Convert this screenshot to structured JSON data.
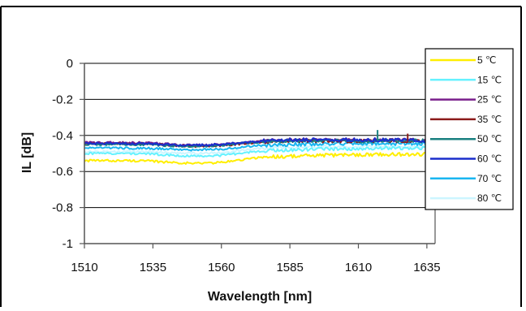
{
  "chart_data": {
    "type": "line",
    "xlabel": "Wavelength [nm]",
    "ylabel": "IL [dB]",
    "xlim": [
      1510,
      1638
    ],
    "ylim": [
      -1,
      0
    ],
    "x_ticks": [
      1510,
      1535,
      1560,
      1585,
      1610,
      1635
    ],
    "y_ticks": [
      0,
      -0.2,
      -0.4,
      -0.6,
      -0.8,
      -1
    ],
    "x_tick_labels": [
      "1510",
      "1535",
      "1560",
      "1585",
      "1610",
      "1635"
    ],
    "y_tick_labels": [
      "0",
      "-0.2",
      "-0.4",
      "-0.6",
      "-0.8",
      "-1"
    ],
    "grid": "horizontal",
    "legend_position": "right",
    "series": [
      {
        "name": "5 ℃",
        "color": "#ffee00",
        "x": [
          1510,
          1530,
          1550,
          1560,
          1575,
          1585,
          1600,
          1615,
          1630,
          1638
        ],
        "values": [
          -0.54,
          -0.54,
          -0.555,
          -0.55,
          -0.52,
          -0.515,
          -0.51,
          -0.505,
          -0.505,
          -0.5
        ]
      },
      {
        "name": "15 ℃",
        "color": "#66f2ff",
        "x": [
          1510,
          1530,
          1550,
          1560,
          1575,
          1585,
          1600,
          1615,
          1630,
          1638
        ],
        "values": [
          -0.5,
          -0.5,
          -0.515,
          -0.51,
          -0.485,
          -0.48,
          -0.475,
          -0.47,
          -0.47,
          -0.465
        ]
      },
      {
        "name": "25 ℃",
        "color": "#7a1f8c",
        "x": [
          1510,
          1530,
          1550,
          1560,
          1575,
          1585,
          1600,
          1615,
          1630,
          1638
        ],
        "values": [
          -0.44,
          -0.44,
          -0.455,
          -0.45,
          -0.43,
          -0.425,
          -0.425,
          -0.425,
          -0.425,
          -0.425
        ]
      },
      {
        "name": "35 ℃",
        "color": "#8b1a1a",
        "x": [
          1510,
          1530,
          1550,
          1560,
          1575,
          1585,
          1600,
          1615,
          1630,
          1638
        ],
        "values": [
          -0.445,
          -0.445,
          -0.46,
          -0.455,
          -0.435,
          -0.43,
          -0.43,
          -0.43,
          -0.43,
          -0.43
        ]
      },
      {
        "name": "50 ℃",
        "color": "#1a8080",
        "x": [
          1510,
          1530,
          1550,
          1560,
          1575,
          1585,
          1600,
          1615,
          1630,
          1638
        ],
        "values": [
          -0.45,
          -0.45,
          -0.46,
          -0.455,
          -0.435,
          -0.43,
          -0.43,
          -0.43,
          -0.43,
          -0.43
        ]
      },
      {
        "name": "60 ℃",
        "color": "#1a2ecc",
        "x": [
          1510,
          1530,
          1550,
          1560,
          1575,
          1585,
          1600,
          1615,
          1630,
          1638
        ],
        "values": [
          -0.445,
          -0.445,
          -0.455,
          -0.45,
          -0.43,
          -0.425,
          -0.425,
          -0.425,
          -0.425,
          -0.43
        ]
      },
      {
        "name": "70 ℃",
        "color": "#19b6f0",
        "x": [
          1510,
          1530,
          1550,
          1560,
          1575,
          1585,
          1600,
          1615,
          1630,
          1638
        ],
        "values": [
          -0.47,
          -0.47,
          -0.48,
          -0.475,
          -0.455,
          -0.45,
          -0.445,
          -0.445,
          -0.445,
          -0.445
        ]
      },
      {
        "name": "80 ℃",
        "color": "#ccf5ff",
        "x": [
          1510,
          1530,
          1550,
          1560,
          1575,
          1585,
          1600,
          1615,
          1630,
          1638
        ],
        "values": [
          -0.49,
          -0.49,
          -0.5,
          -0.495,
          -0.47,
          -0.465,
          -0.46,
          -0.46,
          -0.46,
          -0.46
        ]
      }
    ]
  }
}
